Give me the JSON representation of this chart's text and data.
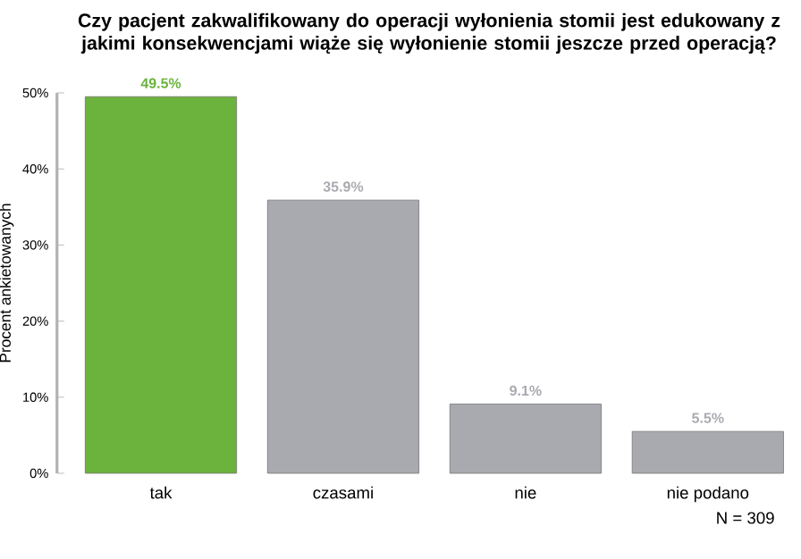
{
  "chart_data": {
    "type": "bar",
    "title": "Czy pacjent zakwalifikowany do operacji wyłonienia stomii jest edukowany z jakimi konsekwencjami wiąże się wyłonienie stomii jeszcze przed operacją?",
    "ylabel": "Procent ankietowanych",
    "categories": [
      "tak",
      "czasami",
      "nie",
      "nie podano"
    ],
    "values": [
      49.5,
      35.9,
      9.1,
      5.5
    ],
    "colors": [
      "#6cb33e",
      "#a9aab0",
      "#a9aab0",
      "#a9aab0"
    ],
    "value_labels": [
      "49.5%",
      "35.9%",
      "9.1%",
      "5.5%"
    ],
    "ylim": [
      0,
      50
    ],
    "yticks": [
      {
        "value": 0,
        "label": "0%"
      },
      {
        "value": 10,
        "label": "10%"
      },
      {
        "value": 20,
        "label": "20%"
      },
      {
        "value": 30,
        "label": "30%"
      },
      {
        "value": 40,
        "label": "40%"
      },
      {
        "value": 50,
        "label": "50%"
      }
    ],
    "grid": false,
    "annotations": [
      "N = 309"
    ]
  }
}
